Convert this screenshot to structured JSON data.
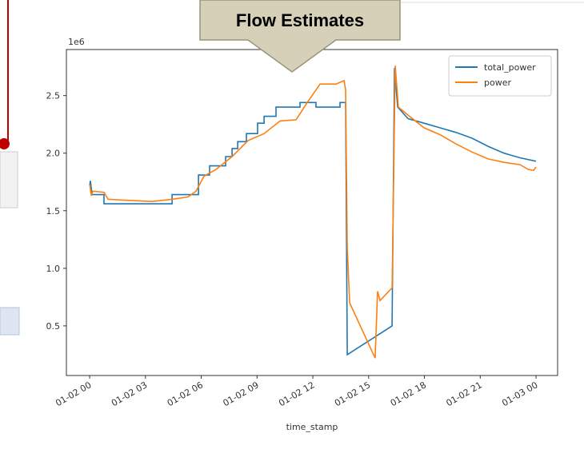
{
  "callout": "Flow Estimates",
  "chart_data": {
    "type": "line",
    "xlabel": "time_stamp",
    "offset_label": "1e6",
    "legend": "upper right",
    "xlim": [
      -1.25,
      25.16
    ],
    "ylim": [
      0.069,
      2.9
    ],
    "xticks": [
      {
        "value": 0,
        "label": "01-02 00"
      },
      {
        "value": 3,
        "label": "01-02 03"
      },
      {
        "value": 6,
        "label": "01-02 06"
      },
      {
        "value": 9,
        "label": "01-02 09"
      },
      {
        "value": 12,
        "label": "01-02 12"
      },
      {
        "value": 15,
        "label": "01-02 15"
      },
      {
        "value": 18,
        "label": "01-02 18"
      },
      {
        "value": 21,
        "label": "01-02 21"
      },
      {
        "value": 24,
        "label": "01-03 00"
      }
    ],
    "yticks": [
      0.5,
      {
        "value": 1.0,
        "label": "1.0"
      },
      1.5,
      {
        "value": 2.0,
        "label": "2.0"
      },
      2.5
    ],
    "series": [
      {
        "name": "total_power",
        "color": "#1f77b4",
        "x": [
          0,
          0.04,
          0.13,
          0.77,
          0.77,
          4.43,
          4.43,
          5.85,
          5.85,
          6.45,
          6.45,
          7.31,
          7.31,
          7.66,
          7.66,
          7.96,
          7.96,
          8.43,
          8.43,
          9.03,
          9.03,
          9.38,
          9.38,
          10.02,
          10.02,
          11.31,
          11.31,
          12.17,
          12.17,
          13.46,
          13.46,
          13.76,
          13.85,
          16.26,
          16.39,
          16.56,
          17.12,
          17.98,
          18.84,
          19.7,
          20.56,
          21.42,
          22.28,
          23.14,
          24.0
        ],
        "values": [
          1.72,
          1.76,
          1.64,
          1.64,
          1.56,
          1.56,
          1.64,
          1.64,
          1.81,
          1.81,
          1.89,
          1.89,
          1.97,
          1.97,
          2.04,
          2.04,
          2.1,
          2.1,
          2.17,
          2.17,
          2.26,
          2.26,
          2.32,
          2.32,
          2.4,
          2.4,
          2.44,
          2.44,
          2.4,
          2.4,
          2.44,
          2.44,
          0.25,
          0.5,
          2.74,
          2.4,
          2.3,
          2.26,
          2.22,
          2.18,
          2.13,
          2.06,
          2.0,
          1.96,
          1.93
        ]
      },
      {
        "name": "power",
        "color": "#ff7f0e",
        "x": [
          0,
          0.09,
          0.17,
          0.77,
          0.99,
          2.06,
          3.35,
          4.43,
          5.29,
          5.72,
          6.15,
          6.8,
          7.66,
          8.52,
          9.38,
          10.24,
          11.1,
          11.74,
          12.39,
          13.25,
          13.68,
          13.76,
          13.85,
          13.98,
          15.35,
          15.48,
          15.61,
          16.26,
          16.34,
          16.43,
          16.6,
          17.12,
          17.98,
          18.84,
          19.7,
          20.56,
          21.42,
          22.28,
          23.14,
          23.57,
          23.87,
          24.0
        ],
        "values": [
          1.73,
          1.63,
          1.67,
          1.66,
          1.6,
          1.59,
          1.58,
          1.6,
          1.62,
          1.67,
          1.8,
          1.86,
          1.97,
          2.11,
          2.17,
          2.28,
          2.29,
          2.45,
          2.6,
          2.6,
          2.63,
          2.55,
          1.17,
          0.7,
          0.22,
          0.8,
          0.72,
          0.83,
          1.7,
          2.76,
          2.4,
          2.33,
          2.22,
          2.16,
          2.08,
          2.01,
          1.95,
          1.92,
          1.9,
          1.86,
          1.85,
          1.88
        ]
      }
    ]
  }
}
